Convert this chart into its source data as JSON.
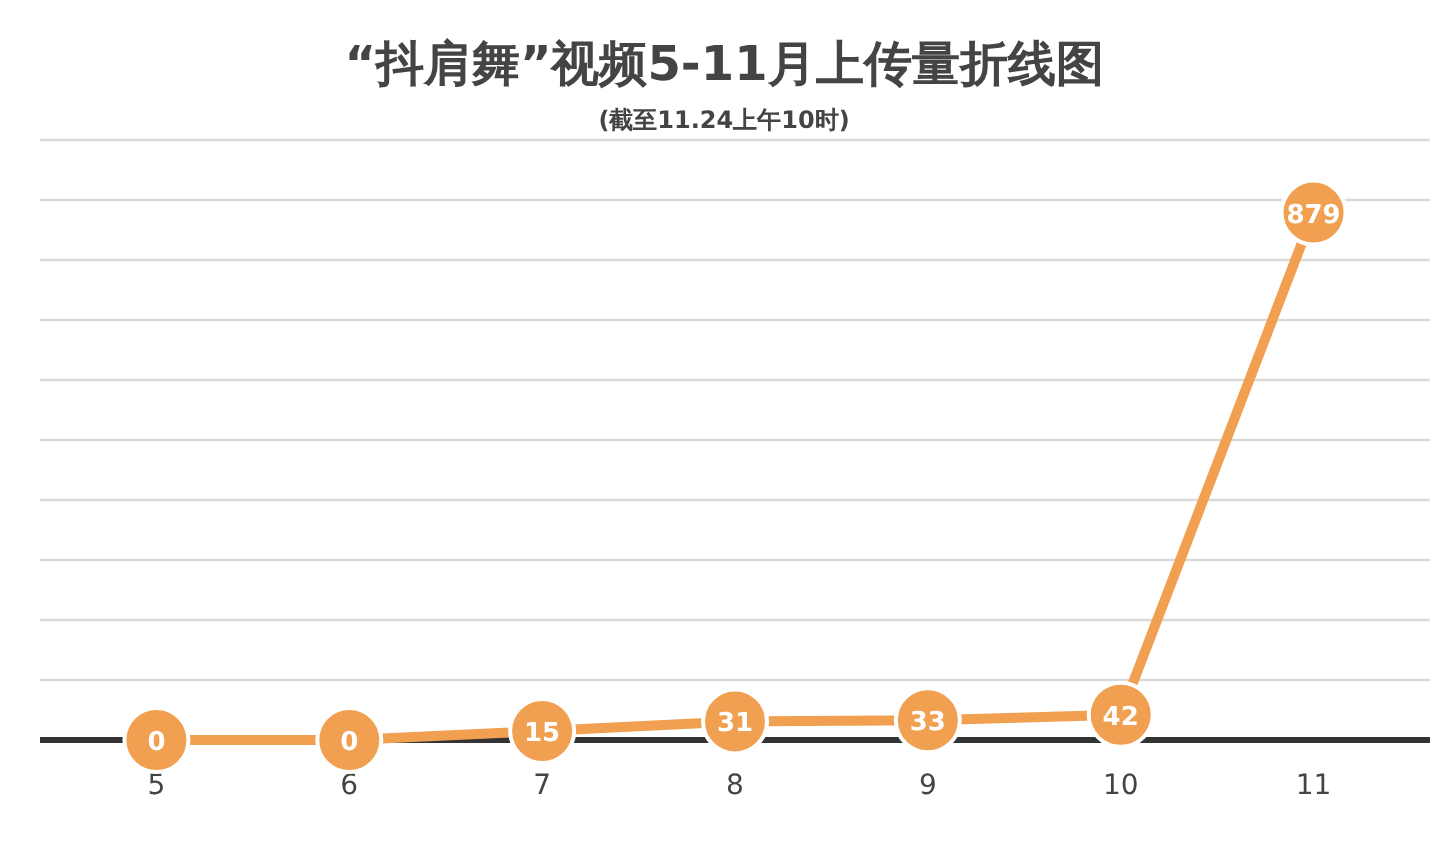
{
  "chart_data": {
    "type": "line",
    "title": "“抖肩舞”视频5-11月上传量折线图",
    "subtitle": "(截至11.24上午10时)",
    "categories": [
      "5",
      "6",
      "7",
      "8",
      "9",
      "10",
      "11"
    ],
    "values": [
      0,
      0,
      15,
      31,
      33,
      42,
      879
    ],
    "color": "#f0a050",
    "ylim": [
      0,
      1000
    ],
    "yticks": [
      {
        "value": 0,
        "label": null
      },
      {
        "value": 100,
        "label": null
      },
      {
        "value": 200,
        "label": null
      },
      {
        "value": 300,
        "label": null
      },
      {
        "value": 400,
        "label": null
      },
      {
        "value": 500,
        "label": null
      },
      {
        "value": 600,
        "label": null
      },
      {
        "value": 700,
        "label": null
      },
      {
        "value": 800,
        "label": null
      },
      {
        "value": 900,
        "label": null
      },
      {
        "value": 1000,
        "label": null
      }
    ],
    "tick_labels": "x",
    "grid": "y",
    "data_labels": true,
    "marker": "circle",
    "line_style": "solid"
  }
}
